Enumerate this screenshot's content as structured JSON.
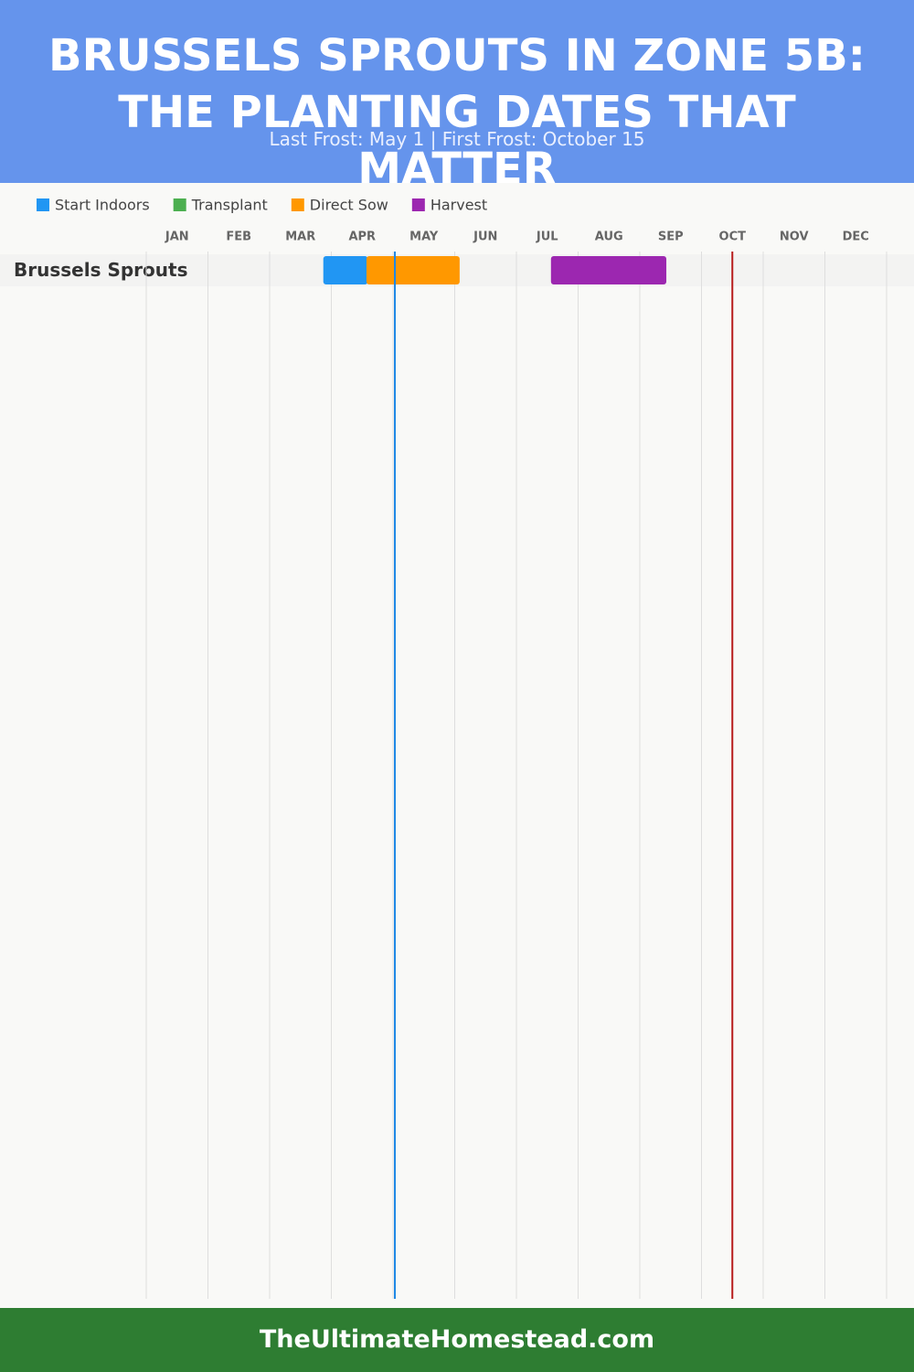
{
  "chart_data": {
    "type": "gantt",
    "title": "BRUSSELS SPROUTS IN ZONE 5B: THE PLANTING DATES THAT MATTER",
    "subtitle": "Last Frost: May 1 | First Frost: October 15",
    "footer": "TheUltimateHomestead.com",
    "rows": [
      "Brussels Sprouts"
    ],
    "series": [
      {
        "name": "Start Indoors",
        "color": "#2196f3",
        "start": [
          2.87
        ],
        "end": [
          3.59
        ]
      },
      {
        "name": "Transplant",
        "color": "#4caf50",
        "start": [
          null
        ],
        "end": [
          null
        ]
      },
      {
        "name": "Direct Sow",
        "color": "#ff9800",
        "start": [
          3.57
        ],
        "end": [
          5.08
        ]
      },
      {
        "name": "Harvest",
        "color": "#9c27b0",
        "start": [
          6.56
        ],
        "end": [
          8.43
        ]
      }
    ],
    "markers": [
      {
        "value": 4.03,
        "color": "#1e88e5"
      },
      {
        "value": 9.5,
        "color": "#b71c1c"
      }
    ],
    "xlim": [
      0,
      12
    ],
    "xticks": [
      {
        "value": 0,
        "label": "JAN"
      },
      {
        "value": 1,
        "label": "FEB"
      },
      {
        "value": 2,
        "label": "MAR"
      },
      {
        "value": 3,
        "label": "APR"
      },
      {
        "value": 4,
        "label": "MAY"
      },
      {
        "value": 5,
        "label": "JUN"
      },
      {
        "value": 6,
        "label": "JUL"
      },
      {
        "value": 7,
        "label": "AUG"
      },
      {
        "value": 8,
        "label": "SEP"
      },
      {
        "value": 9,
        "label": "OCT"
      },
      {
        "value": 10,
        "label": "NOV"
      },
      {
        "value": 11,
        "label": "DEC"
      }
    ],
    "grid": true
  }
}
